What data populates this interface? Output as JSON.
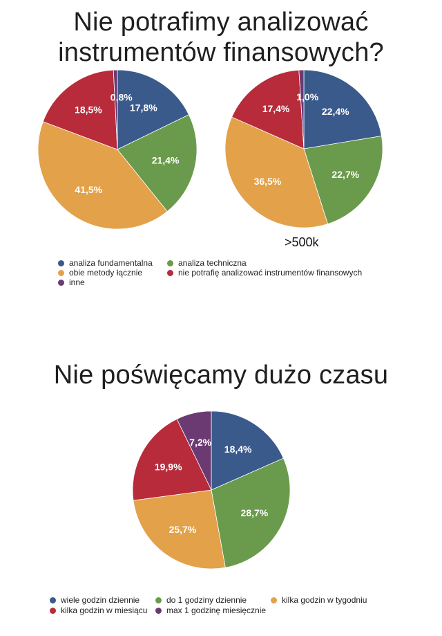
{
  "titles": {
    "top": "Nie potrafimy analizować\ninstrumentów finansowych?",
    "bottom": "Nie poświęcamy dużo czasu"
  },
  "colors": {
    "blue": "#3a5a8c",
    "green": "#6a9a4b",
    "orange": "#e3a14a",
    "red": "#b72b3b",
    "purple": "#6b3a72"
  },
  "chart_data": [
    {
      "type": "pie",
      "categories": [
        "analiza fundamentalna",
        "analiza techniczna",
        "obie metody łącznie",
        "nie potrafię analizować instrumentów finansowych",
        "inne"
      ],
      "values": [
        17.8,
        21.4,
        41.5,
        18.5,
        0.8
      ],
      "value_labels": [
        "17,8%",
        "21,4%",
        "41,5%",
        "18,5%",
        "0,8%"
      ],
      "colors": [
        "#3a5a8c",
        "#6a9a4b",
        "#e3a14a",
        "#b72b3b",
        "#6b3a72"
      ]
    },
    {
      "type": "pie",
      "label": ">500k",
      "categories": [
        "analiza fundamentalna",
        "analiza techniczna",
        "obie metody łącznie",
        "nie potrafię analizować instrumentów finansowych",
        "inne"
      ],
      "values": [
        22.4,
        22.7,
        36.5,
        17.4,
        1.0
      ],
      "value_labels": [
        "22,4%",
        "22,7%",
        "36,5%",
        "17,4%",
        "1,0%"
      ],
      "colors": [
        "#3a5a8c",
        "#6a9a4b",
        "#e3a14a",
        "#b72b3b",
        "#6b3a72"
      ]
    },
    {
      "type": "pie",
      "categories": [
        "wiele godzin dziennie",
        "do 1 godziny dziennie",
        "kilka godzin w tygodniu",
        "kilka godzin w miesiącu",
        "max 1 godzinę miesięcznie"
      ],
      "values": [
        18.4,
        28.7,
        25.7,
        19.9,
        7.2
      ],
      "value_labels": [
        "18,4%",
        "28,7%",
        "25,7%",
        "19,9%",
        "7,2%"
      ],
      "colors": [
        "#3a5a8c",
        "#6a9a4b",
        "#e3a14a",
        "#b72b3b",
        "#6b3a72"
      ]
    }
  ],
  "legend1": [
    {
      "label": "analiza fundamentalna",
      "color": "#3a5a8c"
    },
    {
      "label": "analiza techniczna",
      "color": "#6a9a4b"
    },
    {
      "label": "obie metody łącznie",
      "color": "#e3a14a"
    },
    {
      "label": "nie potrafię analizować instrumentów finansowych",
      "color": "#b72b3b"
    },
    {
      "label": "inne",
      "color": "#6b3a72"
    }
  ],
  "legend2": [
    {
      "label": "wiele godzin dziennie",
      "color": "#3a5a8c"
    },
    {
      "label": "do 1 godziny dziennie",
      "color": "#6a9a4b"
    },
    {
      "label": "kilka godzin w tygodniu",
      "color": "#e3a14a"
    },
    {
      "label": "kilka godzin w miesiącu",
      "color": "#b72b3b"
    },
    {
      "label": "max 1 godzinę miesięcznie",
      "color": "#6b3a72"
    }
  ]
}
